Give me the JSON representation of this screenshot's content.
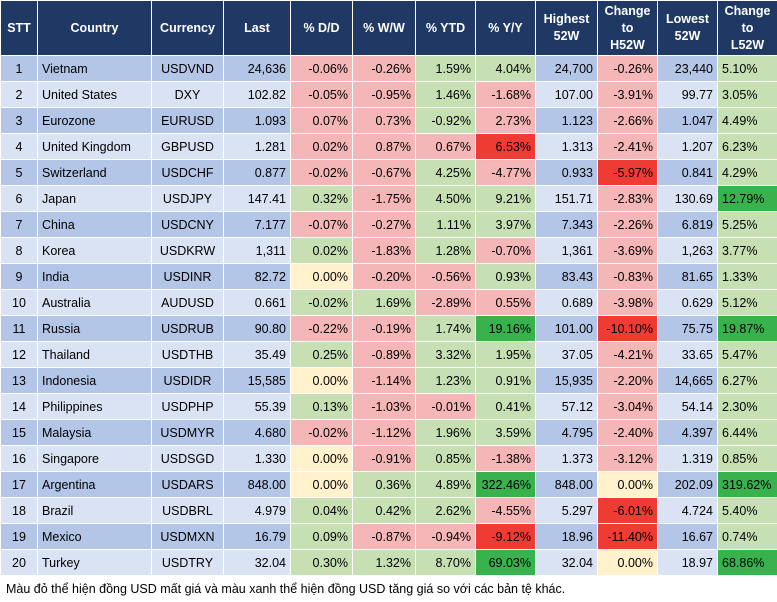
{
  "headers": [
    "STT",
    "Country",
    "Currency",
    "Last",
    "% D/D",
    "% W/W",
    "% YTD",
    "% Y/Y",
    "Highest\n52W",
    "Change\nto\nH52W",
    "Lowest\n52W",
    "Change\nto\nL52W"
  ],
  "colors": {
    "header_bg": "#1f3864",
    "row_dark": "#b4c6e7",
    "row_light": "#dae3f3",
    "red_light": "#f4b6b6",
    "red_strong": "#ee3b33",
    "green_light": "#c6e0b4",
    "green_strong": "#37b24d",
    "yellow": "#fff2cc"
  },
  "rows": [
    {
      "cells": [
        "1",
        "Vietnam",
        "USDVND",
        "24,636",
        "-0.06%",
        "-0.26%",
        "1.59%",
        "4.04%",
        "24,700",
        "-0.26%",
        "23,440",
        "5.10%"
      ],
      "hl": {
        "4": "red_light",
        "5": "red_light",
        "6": "green_light",
        "7": "green_light",
        "9": "red_light",
        "11": "green_light"
      }
    },
    {
      "cells": [
        "2",
        "United States",
        "DXY",
        "102.82",
        "-0.05%",
        "-0.95%",
        "1.46%",
        "-1.68%",
        "107.00",
        "-3.91%",
        "99.77",
        "3.05%"
      ],
      "hl": {
        "4": "red_light",
        "5": "red_light",
        "6": "green_light",
        "7": "red_light",
        "9": "red_light",
        "11": "green_light"
      }
    },
    {
      "cells": [
        "3",
        "Eurozone",
        "EURUSD",
        "1.093",
        "0.07%",
        "0.73%",
        "-0.92%",
        "2.73%",
        "1.123",
        "-2.66%",
        "1.047",
        "4.49%"
      ],
      "hl": {
        "4": "red_light",
        "5": "red_light",
        "6": "green_light",
        "7": "red_light",
        "9": "red_light",
        "11": "green_light"
      }
    },
    {
      "cells": [
        "4",
        "United Kingdom",
        "GBPUSD",
        "1.281",
        "0.02%",
        "0.87%",
        "0.67%",
        "6.53%",
        "1.313",
        "-2.41%",
        "1.207",
        "6.23%"
      ],
      "hl": {
        "4": "red_light",
        "5": "red_light",
        "6": "red_light",
        "7": "red_strong",
        "9": "red_light",
        "11": "green_light"
      }
    },
    {
      "cells": [
        "5",
        "Switzerland",
        "USDCHF",
        "0.877",
        "-0.02%",
        "-0.67%",
        "4.25%",
        "-4.77%",
        "0.933",
        "-5.97%",
        "0.841",
        "4.29%"
      ],
      "hl": {
        "4": "red_light",
        "5": "red_light",
        "6": "green_light",
        "7": "red_light",
        "9": "red_strong",
        "11": "green_light"
      }
    },
    {
      "cells": [
        "6",
        "Japan",
        "USDJPY",
        "147.41",
        "0.32%",
        "-1.75%",
        "4.50%",
        "9.21%",
        "151.71",
        "-2.83%",
        "130.69",
        "12.79%"
      ],
      "hl": {
        "4": "green_light",
        "5": "red_light",
        "6": "green_light",
        "7": "green_light",
        "9": "red_light",
        "11": "green_strong"
      }
    },
    {
      "cells": [
        "7",
        "China",
        "USDCNY",
        "7.177",
        "-0.07%",
        "-0.27%",
        "1.11%",
        "3.97%",
        "7.343",
        "-2.26%",
        "6.819",
        "5.25%"
      ],
      "hl": {
        "4": "red_light",
        "5": "red_light",
        "6": "green_light",
        "7": "green_light",
        "9": "red_light",
        "11": "green_light"
      }
    },
    {
      "cells": [
        "8",
        "Korea",
        "USDKRW",
        "1,311",
        "0.02%",
        "-1.83%",
        "1.28%",
        "-0.70%",
        "1,361",
        "-3.69%",
        "1,263",
        "3.77%"
      ],
      "hl": {
        "4": "green_light",
        "5": "red_light",
        "6": "green_light",
        "7": "red_light",
        "9": "red_light",
        "11": "green_light"
      }
    },
    {
      "cells": [
        "9",
        "India",
        "USDINR",
        "82.72",
        "0.00%",
        "-0.20%",
        "-0.56%",
        "0.93%",
        "83.43",
        "-0.83%",
        "81.65",
        "1.33%"
      ],
      "hl": {
        "4": "yellow",
        "5": "red_light",
        "6": "red_light",
        "7": "green_light",
        "9": "red_light",
        "11": "green_light"
      }
    },
    {
      "cells": [
        "10",
        "Australia",
        "AUDUSD",
        "0.661",
        "-0.02%",
        "1.69%",
        "-2.89%",
        "0.55%",
        "0.689",
        "-3.98%",
        "0.629",
        "5.12%"
      ],
      "hl": {
        "4": "green_light",
        "5": "green_light",
        "6": "red_light",
        "7": "red_light",
        "9": "red_light",
        "11": "green_light"
      }
    },
    {
      "cells": [
        "11",
        "Russia",
        "USDRUB",
        "90.80",
        "-0.22%",
        "-0.19%",
        "1.74%",
        "19.16%",
        "101.00",
        "-10.10%",
        "75.75",
        "19.87%"
      ],
      "hl": {
        "4": "red_light",
        "5": "red_light",
        "6": "green_light",
        "7": "green_strong",
        "9": "red_strong",
        "11": "green_strong"
      }
    },
    {
      "cells": [
        "12",
        "Thailand",
        "USDTHB",
        "35.49",
        "0.25%",
        "-0.89%",
        "3.32%",
        "1.95%",
        "37.05",
        "-4.21%",
        "33.65",
        "5.47%"
      ],
      "hl": {
        "4": "green_light",
        "5": "red_light",
        "6": "green_light",
        "7": "green_light",
        "9": "red_light",
        "11": "green_light"
      }
    },
    {
      "cells": [
        "13",
        "Indonesia",
        "USDIDR",
        "15,585",
        "0.00%",
        "-1.14%",
        "1.23%",
        "0.91%",
        "15,935",
        "-2.20%",
        "14,665",
        "6.27%"
      ],
      "hl": {
        "4": "yellow",
        "5": "red_light",
        "6": "green_light",
        "7": "green_light",
        "9": "red_light",
        "11": "green_light"
      }
    },
    {
      "cells": [
        "14",
        "Philippines",
        "USDPHP",
        "55.39",
        "0.13%",
        "-1.03%",
        "-0.01%",
        "0.41%",
        "57.12",
        "-3.04%",
        "54.14",
        "2.30%"
      ],
      "hl": {
        "4": "green_light",
        "5": "red_light",
        "6": "red_light",
        "7": "green_light",
        "9": "red_light",
        "11": "green_light"
      }
    },
    {
      "cells": [
        "15",
        "Malaysia",
        "USDMYR",
        "4.680",
        "-0.02%",
        "-1.12%",
        "1.96%",
        "3.59%",
        "4.795",
        "-2.40%",
        "4.397",
        "6.44%"
      ],
      "hl": {
        "4": "red_light",
        "5": "red_light",
        "6": "green_light",
        "7": "green_light",
        "9": "red_light",
        "11": "green_light"
      }
    },
    {
      "cells": [
        "16",
        "Singapore",
        "USDSGD",
        "1.330",
        "0.00%",
        "-0.91%",
        "0.85%",
        "-1.38%",
        "1.373",
        "-3.12%",
        "1.319",
        "0.85%"
      ],
      "hl": {
        "4": "yellow",
        "5": "red_light",
        "6": "green_light",
        "7": "red_light",
        "9": "red_light",
        "11": "green_light"
      }
    },
    {
      "cells": [
        "17",
        "Argentina",
        "USDARS",
        "848.00",
        "0.00%",
        "0.36%",
        "4.89%",
        "322.46%",
        "848.00",
        "0.00%",
        "202.09",
        "319.62%"
      ],
      "hl": {
        "4": "yellow",
        "5": "green_light",
        "6": "green_light",
        "7": "green_strong",
        "9": "yellow",
        "11": "green_strong"
      }
    },
    {
      "cells": [
        "18",
        "Brazil",
        "USDBRL",
        "4.979",
        "0.04%",
        "0.42%",
        "2.62%",
        "-4.55%",
        "5.297",
        "-6.01%",
        "4.724",
        "5.40%"
      ],
      "hl": {
        "4": "green_light",
        "5": "green_light",
        "6": "green_light",
        "7": "red_light",
        "9": "red_strong",
        "11": "green_light"
      }
    },
    {
      "cells": [
        "19",
        "Mexico",
        "USDMXN",
        "16.79",
        "0.09%",
        "-0.87%",
        "-0.94%",
        "-9.12%",
        "18.96",
        "-11.40%",
        "16.67",
        "0.74%"
      ],
      "hl": {
        "4": "green_light",
        "5": "red_light",
        "6": "red_light",
        "7": "red_strong",
        "9": "red_strong",
        "11": "green_light"
      }
    },
    {
      "cells": [
        "20",
        "Turkey",
        "USDTRY",
        "32.04",
        "0.30%",
        "1.32%",
        "8.70%",
        "69.03%",
        "32.04",
        "0.00%",
        "18.97",
        "68.86%"
      ],
      "hl": {
        "4": "green_light",
        "5": "green_light",
        "6": "green_light",
        "7": "green_strong",
        "9": "yellow",
        "11": "green_strong"
      }
    }
  ],
  "note": "Màu đỏ thể hiện đồng USD mất giá và màu xanh thể hiện đồng USD tăng giá so với các bản tệ khác."
}
